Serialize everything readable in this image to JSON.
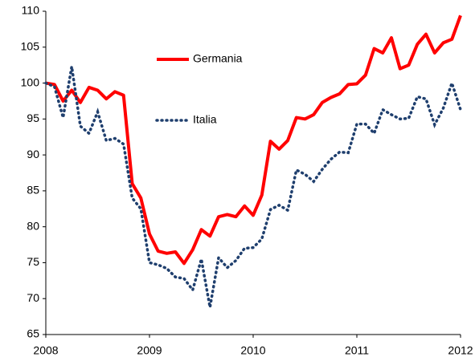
{
  "chart_data": {
    "type": "line",
    "categories": [
      "2008",
      null,
      null,
      null,
      null,
      null,
      null,
      null,
      null,
      null,
      null,
      null,
      "2009",
      null,
      null,
      null,
      null,
      null,
      null,
      null,
      null,
      null,
      null,
      null,
      "2010",
      null,
      null,
      null,
      null,
      null,
      null,
      null,
      null,
      null,
      null,
      null,
      "2011",
      null,
      null,
      null,
      null,
      null,
      null,
      null,
      null,
      null,
      null,
      null,
      "2012"
    ],
    "series": [
      {
        "name": "Germania",
        "color": "#ff0000",
        "style": "solid",
        "values": [
          100,
          99.8,
          97.5,
          99,
          97.3,
          99.4,
          99,
          97.8,
          98.8,
          98.3,
          86,
          84,
          79,
          76.6,
          76.3,
          76.5,
          74.9,
          76.8,
          79.6,
          78.7,
          81.4,
          81.7,
          81.4,
          82.9,
          81.6,
          84.4,
          91.9,
          90.8,
          92,
          95.2,
          95,
          95.6,
          97.3,
          98,
          98.5,
          99.8,
          99.9,
          101.1,
          104.8,
          104.2,
          106.3,
          102,
          102.5,
          105.4,
          106.8,
          104.2,
          105.6,
          106.1,
          109.4
        ]
      },
      {
        "name": "Italia",
        "color": "#1f3f6e",
        "style": "dotted",
        "values": [
          100,
          99.5,
          95.2,
          102.3,
          94,
          93,
          96,
          92,
          92.3,
          91.5,
          84,
          82.5,
          75,
          74.7,
          74.2,
          73,
          72.8,
          71.2,
          75.5,
          68.8,
          75.7,
          74.3,
          75.3,
          77,
          77.1,
          78.3,
          82.4,
          83,
          82.3,
          87.9,
          87.3,
          86.3,
          88,
          89.4,
          90.4,
          90.3,
          94.3,
          94.3,
          93,
          96.3,
          95.6,
          95,
          95.1,
          98.1,
          97.8,
          94.2,
          96.5,
          100,
          96.3
        ]
      }
    ],
    "ylim": [
      65,
      110
    ],
    "yticks": [
      65,
      70,
      75,
      80,
      85,
      90,
      95,
      100,
      105,
      110
    ],
    "grid": false,
    "legend": "upper left"
  }
}
